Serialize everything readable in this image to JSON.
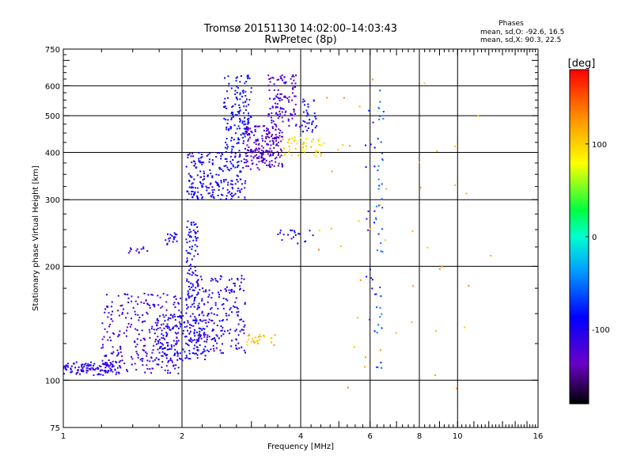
{
  "chart_data": {
    "type": "scatter",
    "title": "Tromsø 20151130 14:02:00–14:03:43",
    "subtitle": "RwPretec (8p)",
    "stats": {
      "heading": "Phases",
      "line1": "mean, sd,O: -92.6, 16.5",
      "line2": "mean, sd,X:  90.3, 22.5"
    },
    "xlabel": "Frequency [MHz]",
    "ylabel": "Stationary phase Virtual Height [km]",
    "xscale": "log",
    "yscale": "log",
    "xlim": [
      1,
      16
    ],
    "ylim": [
      75,
      750
    ],
    "xticks": [
      1,
      2,
      4,
      6,
      8,
      10,
      16
    ],
    "xtick_labels": [
      "1",
      "2",
      "4",
      "6",
      "8",
      "10",
      "16"
    ],
    "xgrid": [
      2,
      4,
      6,
      8,
      10
    ],
    "yticks": [
      75,
      100,
      200,
      300,
      400,
      500,
      600,
      750
    ],
    "ytick_labels": [
      "75",
      "100",
      "200",
      "300",
      "400",
      "500",
      "600",
      "750"
    ],
    "ygrid": [
      100,
      200,
      300,
      400,
      500,
      600
    ],
    "grid": true,
    "colorbar": {
      "label": "[deg]",
      "range": [
        -180,
        180
      ],
      "ticks": [
        100,
        0,
        -100
      ],
      "tick_labels": [
        "100",
        "0",
        "-100"
      ]
    },
    "clusters": [
      {
        "f": [
          1.0,
          1.4
        ],
        "h": [
          103,
          112
        ],
        "phase": -105,
        "n": 120
      },
      {
        "f": [
          1.25,
          2.0
        ],
        "h": [
          104,
          170
        ],
        "phase": -115,
        "n": 260
      },
      {
        "f": [
          1.7,
          2.3
        ],
        "h": [
          112,
          150
        ],
        "phase": -100,
        "n": 170
      },
      {
        "f": [
          2.05,
          2.9
        ],
        "h": [
          118,
          190
        ],
        "phase": -105,
        "n": 230
      },
      {
        "f": [
          2.05,
          2.2
        ],
        "h": [
          150,
          265
        ],
        "phase": -100,
        "n": 90
      },
      {
        "f": [
          1.45,
          1.65
        ],
        "h": [
          215,
          225
        ],
        "phase": -115,
        "n": 12
      },
      {
        "f": [
          1.8,
          1.95
        ],
        "h": [
          228,
          245
        ],
        "phase": -100,
        "n": 18
      },
      {
        "f": [
          2.05,
          2.9
        ],
        "h": [
          300,
          400
        ],
        "phase": -95,
        "n": 220
      },
      {
        "f": [
          2.55,
          3.0
        ],
        "h": [
          400,
          640
        ],
        "phase": -90,
        "n": 150
      },
      {
        "f": [
          2.9,
          3.6
        ],
        "h": [
          360,
          470
        ],
        "phase": -130,
        "n": 200
      },
      {
        "f": [
          3.3,
          3.9
        ],
        "h": [
          470,
          640
        ],
        "phase": -120,
        "n": 110
      },
      {
        "f": [
          3.6,
          4.6
        ],
        "h": [
          390,
          440
        ],
        "phase": 95,
        "n": 55
      },
      {
        "f": [
          3.9,
          4.4
        ],
        "h": [
          450,
          560
        ],
        "phase": -95,
        "n": 35
      },
      {
        "f": [
          3.5,
          4.3
        ],
        "h": [
          225,
          250
        ],
        "phase": -90,
        "n": 20
      },
      {
        "f": [
          2.9,
          3.5
        ],
        "h": [
          123,
          132
        ],
        "phase": 110,
        "n": 25
      },
      {
        "f": [
          6.2,
          6.5
        ],
        "h": [
          100,
          590
        ],
        "phase": -60,
        "n": 45
      },
      {
        "f": [
          5.8,
          6.2
        ],
        "h": [
          130,
          540
        ],
        "phase": -95,
        "n": 20
      },
      {
        "f": [
          4.3,
          12.5
        ],
        "h": [
          95,
          650
        ],
        "phase": 120,
        "n": 45
      }
    ]
  }
}
